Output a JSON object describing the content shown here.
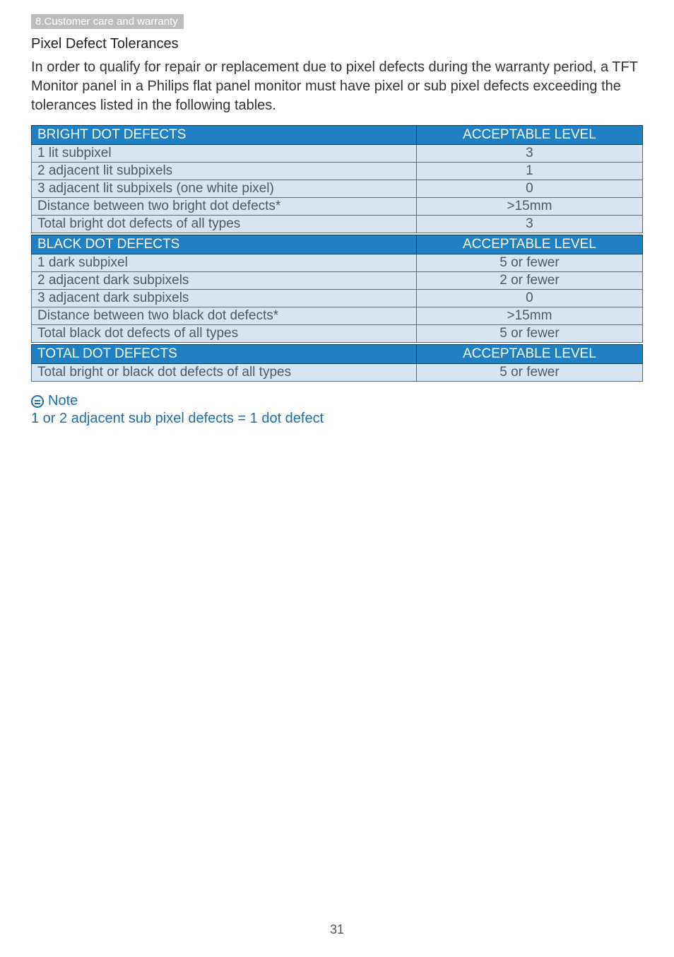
{
  "colors": {
    "header_bg": "#1f80c3",
    "header_text": "#ffffff",
    "header_border": "#0a3f66",
    "cell_bg": "#d7e4f2",
    "cell_text": "#4a5a66",
    "cell_border": "#5a6c78",
    "section_tab_bg": "#bdbdbd",
    "section_tab_text": "#ffffff",
    "note_color": "#1a6fb0",
    "body_text": "#333333"
  },
  "section_tab": "8.Customer care and warranty",
  "heading": "Pixel Defect Tolerances",
  "paragraph": "In order to qualify for repair or replacement due to pixel defects during the warranty period, a TFT Monitor panel in a Philips flat panel monitor must have pixel or sub pixel defects exceeding the tolerances listed in the following tables.",
  "tables": [
    {
      "header": [
        "BRIGHT DOT DEFECTS",
        "ACCEPTABLE LEVEL"
      ],
      "rows": [
        [
          "1 lit subpixel",
          "3"
        ],
        [
          "2 adjacent lit subpixels",
          "1"
        ],
        [
          "3 adjacent lit subpixels (one white pixel)",
          "0"
        ],
        [
          "Distance between two bright dot defects*",
          ">15mm"
        ],
        [
          "Total bright dot defects of all types",
          "3"
        ]
      ]
    },
    {
      "header": [
        "BLACK DOT DEFECTS",
        "ACCEPTABLE LEVEL"
      ],
      "rows": [
        [
          "1 dark subpixel",
          "5 or fewer"
        ],
        [
          "2 adjacent dark subpixels",
          "2 or fewer"
        ],
        [
          "3 adjacent dark subpixels",
          "0"
        ],
        [
          "Distance between two black dot defects*",
          ">15mm"
        ],
        [
          "Total black dot defects of all types",
          "5 or fewer"
        ]
      ]
    },
    {
      "header": [
        "TOTAL DOT DEFECTS",
        "ACCEPTABLE LEVEL"
      ],
      "rows": [
        [
          "Total bright or black dot defects of all types",
          "5 or fewer"
        ]
      ]
    }
  ],
  "note": {
    "label": "Note",
    "text": "1 or 2 adjacent sub pixel defects = 1 dot defect"
  },
  "page_number": "31"
}
